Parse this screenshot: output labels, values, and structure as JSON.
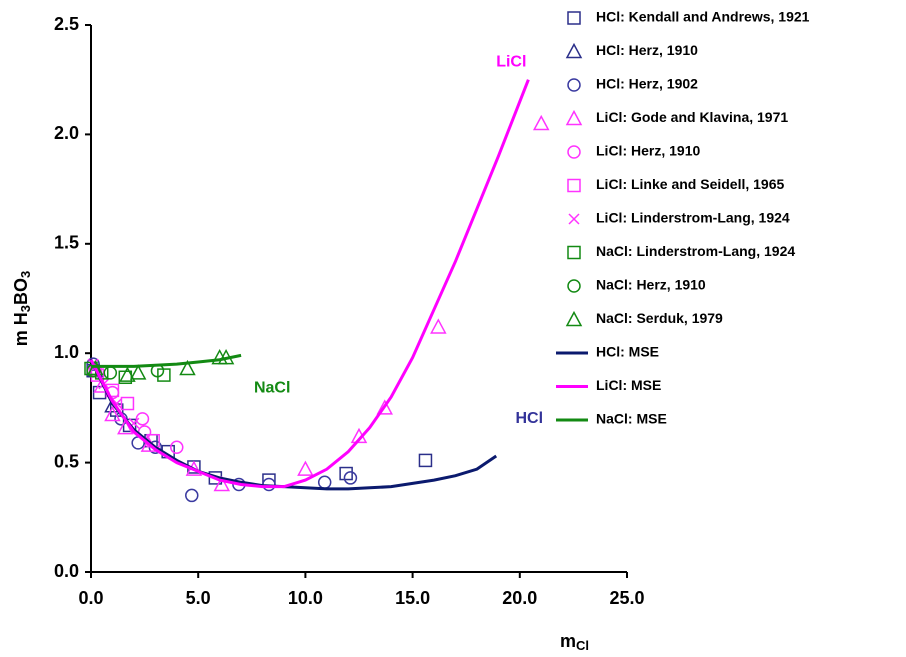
{
  "chart_data": {
    "type": "scatter",
    "xlabel": [
      {
        "text": "m"
      },
      {
        "sub": "Cl"
      }
    ],
    "ylabel": [
      {
        "text": "m H"
      },
      {
        "sub": "3"
      },
      {
        "text": "BO"
      },
      {
        "sub": "3"
      }
    ],
    "xlim": [
      0,
      25
    ],
    "ylim": [
      0,
      2.5
    ],
    "xticks": [
      {
        "value": 0,
        "label": "0.0"
      },
      {
        "value": 5,
        "label": "5.0"
      },
      {
        "value": 10,
        "label": "10.0"
      },
      {
        "value": 15,
        "label": "15.0"
      },
      {
        "value": 20,
        "label": "20.0"
      },
      {
        "value": 25,
        "label": "25.0"
      }
    ],
    "yticks": [
      {
        "value": 0,
        "label": "0.0"
      },
      {
        "value": 0.5,
        "label": "0.5"
      },
      {
        "value": 1,
        "label": "1.0"
      },
      {
        "value": 1.5,
        "label": "1.5"
      },
      {
        "value": 2,
        "label": "2.0"
      },
      {
        "value": 2.5,
        "label": "2.5"
      }
    ],
    "grid": false,
    "legend": "right",
    "annotations": [
      {
        "text": "LiCl",
        "x": 18.9,
        "y": 2.33,
        "color": "#ff00ff"
      },
      {
        "text": "NaCl",
        "x": 7.6,
        "y": 0.84,
        "color": "#138a13"
      },
      {
        "text": "HCl",
        "x": 19.8,
        "y": 0.7,
        "color": "#333399"
      }
    ],
    "series": [
      {
        "name": "HCl: Kendall and Andrews, 1921",
        "color": "#2b2f8a",
        "marker": "square",
        "x": [
          0.1,
          0.4,
          1.2,
          1.8,
          2.8,
          3.6,
          4.8,
          5.8,
          8.3,
          11.9,
          15.6
        ],
        "values": [
          0.92,
          0.82,
          0.74,
          0.67,
          0.6,
          0.55,
          0.48,
          0.43,
          0.42,
          0.45,
          0.51
        ]
      },
      {
        "name": "HCl: Herz, 1910",
        "color": "#2b2f8a",
        "marker": "triangle",
        "x": [
          0.2,
          1.0
        ],
        "values": [
          0.92,
          0.76
        ]
      },
      {
        "name": "HCl: Herz, 1902",
        "color": "#3a3aa0",
        "marker": "circle",
        "x": [
          0.1,
          1.4,
          2.2,
          3.0,
          4.7,
          6.9,
          8.3,
          10.9,
          12.1
        ],
        "values": [
          0.95,
          0.7,
          0.59,
          0.57,
          0.35,
          0.4,
          0.4,
          0.41,
          0.43
        ]
      },
      {
        "name": "LiCl: Gode and Klavina, 1971",
        "color": "#ff33ff",
        "marker": "triangle",
        "x": [
          0.5,
          1.0,
          1.6,
          2.7,
          4.8,
          6.1,
          10.0,
          12.5,
          13.7,
          16.2,
          21.0
        ],
        "values": [
          0.85,
          0.72,
          0.66,
          0.58,
          0.47,
          0.4,
          0.47,
          0.62,
          0.75,
          1.12,
          2.05
        ]
      },
      {
        "name": "LiCl: Herz, 1910",
        "color": "#ff33ff",
        "marker": "circle",
        "x": [
          0.2,
          1.0,
          2.4,
          2.5,
          4.0
        ],
        "values": [
          0.92,
          0.82,
          0.7,
          0.64,
          0.57
        ]
      },
      {
        "name": "LiCl: Linke and Seidell, 1965",
        "color": "#ff33ff",
        "marker": "square",
        "x": [
          0.3,
          1.0,
          1.7,
          2.9
        ],
        "values": [
          0.9,
          0.83,
          0.77,
          0.6
        ]
      },
      {
        "name": "LiCl: Linderstrom-Lang, 1924",
        "color": "#ff33ff",
        "marker": "x",
        "x": [
          0.1,
          0.6,
          1.2,
          2.0
        ],
        "values": [
          0.95,
          0.86,
          0.77,
          0.68
        ]
      },
      {
        "name": "NaCl: Linderstrom-Lang, 1924",
        "color": "#138a13",
        "marker": "square",
        "x": [
          0.0,
          0.5,
          1.6,
          3.4
        ],
        "values": [
          0.93,
          0.91,
          0.89,
          0.9
        ]
      },
      {
        "name": "NaCl: Herz, 1910",
        "color": "#138a13",
        "marker": "circle",
        "x": [
          0.1,
          0.9,
          3.1
        ],
        "values": [
          0.92,
          0.91,
          0.92
        ]
      },
      {
        "name": "NaCl: Serduk, 1979",
        "color": "#138a13",
        "marker": "triangle",
        "x": [
          0.2,
          1.7,
          2.2,
          4.5,
          6.0,
          6.3
        ],
        "values": [
          0.93,
          0.9,
          0.91,
          0.93,
          0.98,
          0.98
        ]
      },
      {
        "name": "HCl: MSE",
        "color": "#0b1a6e",
        "style": "line",
        "x": [
          0,
          1,
          2,
          3,
          4,
          5,
          6,
          7,
          8,
          9,
          10,
          11,
          12,
          13,
          14,
          15,
          16,
          17,
          18,
          18.9
        ],
        "values": [
          0.97,
          0.77,
          0.65,
          0.57,
          0.51,
          0.46,
          0.43,
          0.41,
          0.395,
          0.39,
          0.385,
          0.38,
          0.38,
          0.385,
          0.39,
          0.405,
          0.42,
          0.44,
          0.47,
          0.53
        ]
      },
      {
        "name": "LiCl: MSE",
        "color": "#ff00ff",
        "style": "line",
        "x": [
          0,
          1,
          2,
          3,
          4,
          5,
          6,
          7,
          8,
          8.5,
          9,
          10,
          11,
          12,
          13,
          14,
          15,
          16,
          17,
          18,
          19,
          20,
          20.4
        ],
        "values": [
          0.97,
          0.78,
          0.64,
          0.56,
          0.5,
          0.46,
          0.42,
          0.4,
          0.39,
          0.39,
          0.39,
          0.42,
          0.47,
          0.55,
          0.66,
          0.8,
          0.98,
          1.2,
          1.42,
          1.66,
          1.9,
          2.15,
          2.25
        ]
      },
      {
        "name": "NaCl: MSE",
        "color": "#138a13",
        "style": "line",
        "x": [
          0,
          1,
          2,
          3,
          4,
          5,
          6,
          7
        ],
        "values": [
          0.94,
          0.94,
          0.94,
          0.945,
          0.95,
          0.96,
          0.97,
          0.99
        ]
      }
    ]
  }
}
